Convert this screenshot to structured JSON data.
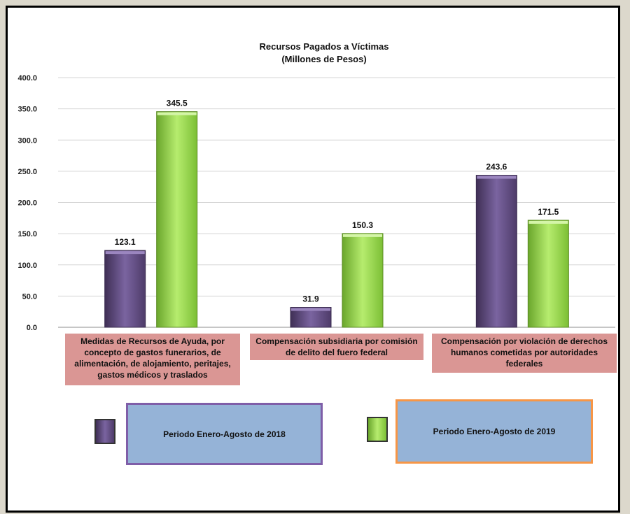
{
  "chart_data": {
    "type": "bar",
    "title": "Recursos Pagados a Víctimas",
    "subtitle": "(Millones de Pesos)",
    "categories": [
      "Medidas de Recursos de Ayuda, por concepto de gastos funerarios, de alimentación, de alojamiento, peritajes, gastos médicos y traslados",
      "Compensación subsidiaria por comisión de delito del fuero federal",
      "Compensación por violación de derechos humanos cometidas por autoridades federales"
    ],
    "series": [
      {
        "name": "Periodo Enero-Agosto de 2018",
        "values": [
          123.1,
          31.9,
          243.6
        ],
        "color": "#604a7b"
      },
      {
        "name": "Periodo Enero-Agosto de 2019",
        "values": [
          345.5,
          150.3,
          171.5
        ],
        "color": "#92d050"
      }
    ],
    "yticks": [
      "0.0",
      "50.0",
      "100.0",
      "150.0",
      "200.0",
      "250.0",
      "300.0",
      "350.0",
      "400.0"
    ],
    "ylim": [
      0,
      400
    ],
    "grid": true,
    "legend_placement": "bottom",
    "category_box_color": "#da9694",
    "legend_box_color": "#95b3d7",
    "legend_border_colors": [
      "#7f5ea8",
      "#f79646"
    ]
  }
}
